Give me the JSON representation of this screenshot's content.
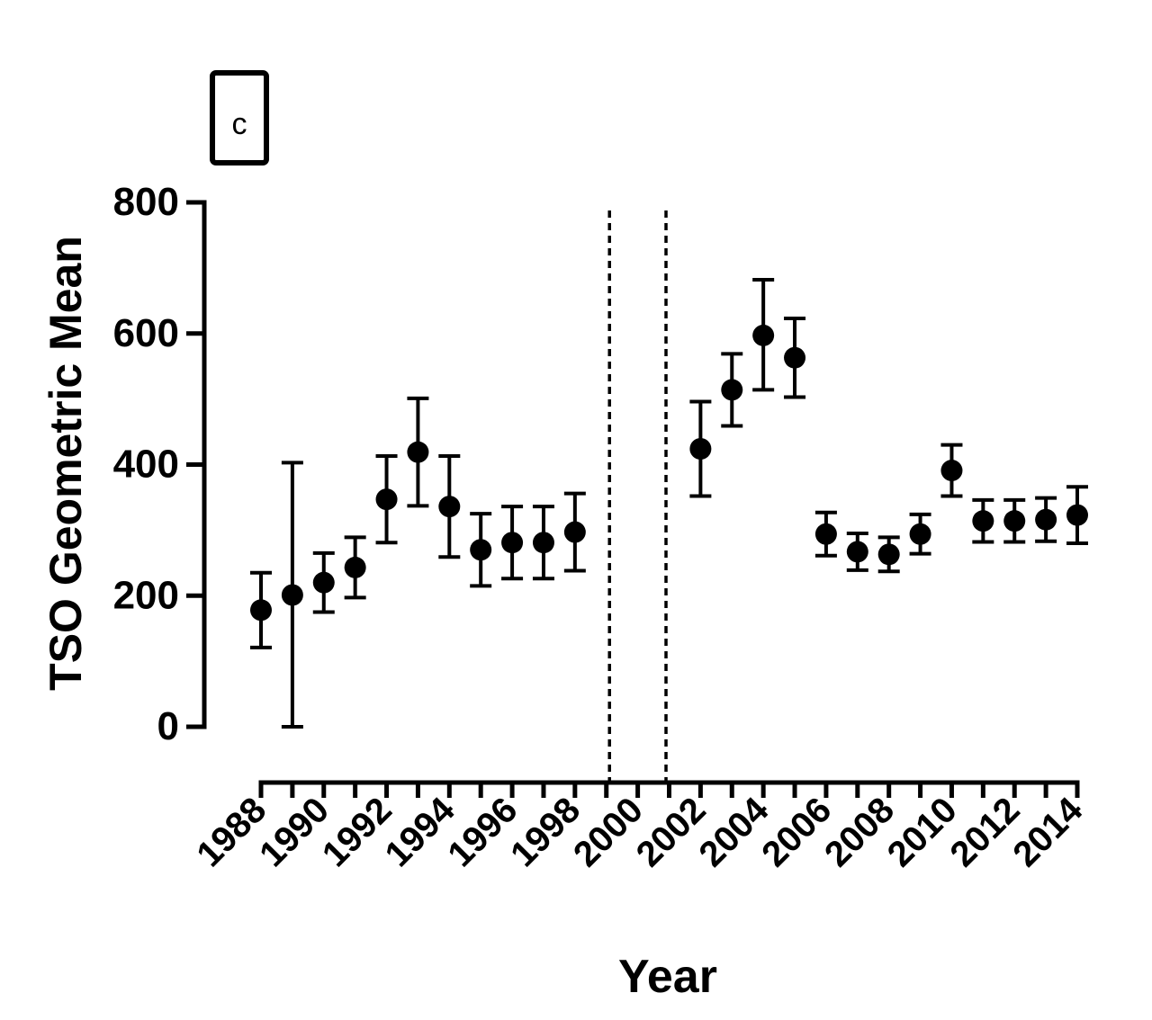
{
  "panel_label": "c",
  "chart_data": {
    "type": "scatter",
    "xlabel": "Year",
    "ylabel": "TSO Geometric Mean",
    "xlim": [
      1988,
      2014
    ],
    "ylim": [
      0,
      800
    ],
    "yticks": [
      0,
      200,
      400,
      600,
      800
    ],
    "xticks": [
      1988,
      1990,
      1992,
      1994,
      1996,
      1998,
      2000,
      2002,
      2004,
      2006,
      2008,
      2010,
      2012,
      2014
    ],
    "vertical_reference_lines": [
      1999.1,
      2000.9
    ],
    "series": [
      {
        "points": [
          {
            "x": 1988,
            "y": 178,
            "lo": 121,
            "hi": 235
          },
          {
            "x": 1989,
            "y": 201,
            "lo": 0,
            "hi": 403
          },
          {
            "x": 1990,
            "y": 220,
            "lo": 175,
            "hi": 265
          },
          {
            "x": 1991,
            "y": 243,
            "lo": 197,
            "hi": 289
          },
          {
            "x": 1992,
            "y": 347,
            "lo": 281,
            "hi": 413
          },
          {
            "x": 1993,
            "y": 419,
            "lo": 337,
            "hi": 501
          },
          {
            "x": 1994,
            "y": 336,
            "lo": 259,
            "hi": 413
          },
          {
            "x": 1995,
            "y": 270,
            "lo": 215,
            "hi": 325
          },
          {
            "x": 1996,
            "y": 281,
            "lo": 226,
            "hi": 336
          },
          {
            "x": 1997,
            "y": 281,
            "lo": 226,
            "hi": 336
          },
          {
            "x": 1998,
            "y": 297,
            "lo": 238,
            "hi": 356
          },
          {
            "x": 2002,
            "y": 424,
            "lo": 352,
            "hi": 496
          },
          {
            "x": 2003,
            "y": 514,
            "lo": 459,
            "hi": 569
          },
          {
            "x": 2004,
            "y": 597,
            "lo": 514,
            "hi": 682
          },
          {
            "x": 2005,
            "y": 563,
            "lo": 503,
            "hi": 623
          },
          {
            "x": 2006,
            "y": 294,
            "lo": 261,
            "hi": 327
          },
          {
            "x": 2007,
            "y": 267,
            "lo": 239,
            "hi": 295
          },
          {
            "x": 2008,
            "y": 263,
            "lo": 237,
            "hi": 289
          },
          {
            "x": 2009,
            "y": 294,
            "lo": 264,
            "hi": 324
          },
          {
            "x": 2010,
            "y": 391,
            "lo": 352,
            "hi": 430
          },
          {
            "x": 2011,
            "y": 314,
            "lo": 282,
            "hi": 346
          },
          {
            "x": 2012,
            "y": 314,
            "lo": 282,
            "hi": 346
          },
          {
            "x": 2013,
            "y": 316,
            "lo": 283,
            "hi": 349
          },
          {
            "x": 2014,
            "y": 323,
            "lo": 280,
            "hi": 366
          }
        ]
      }
    ]
  }
}
